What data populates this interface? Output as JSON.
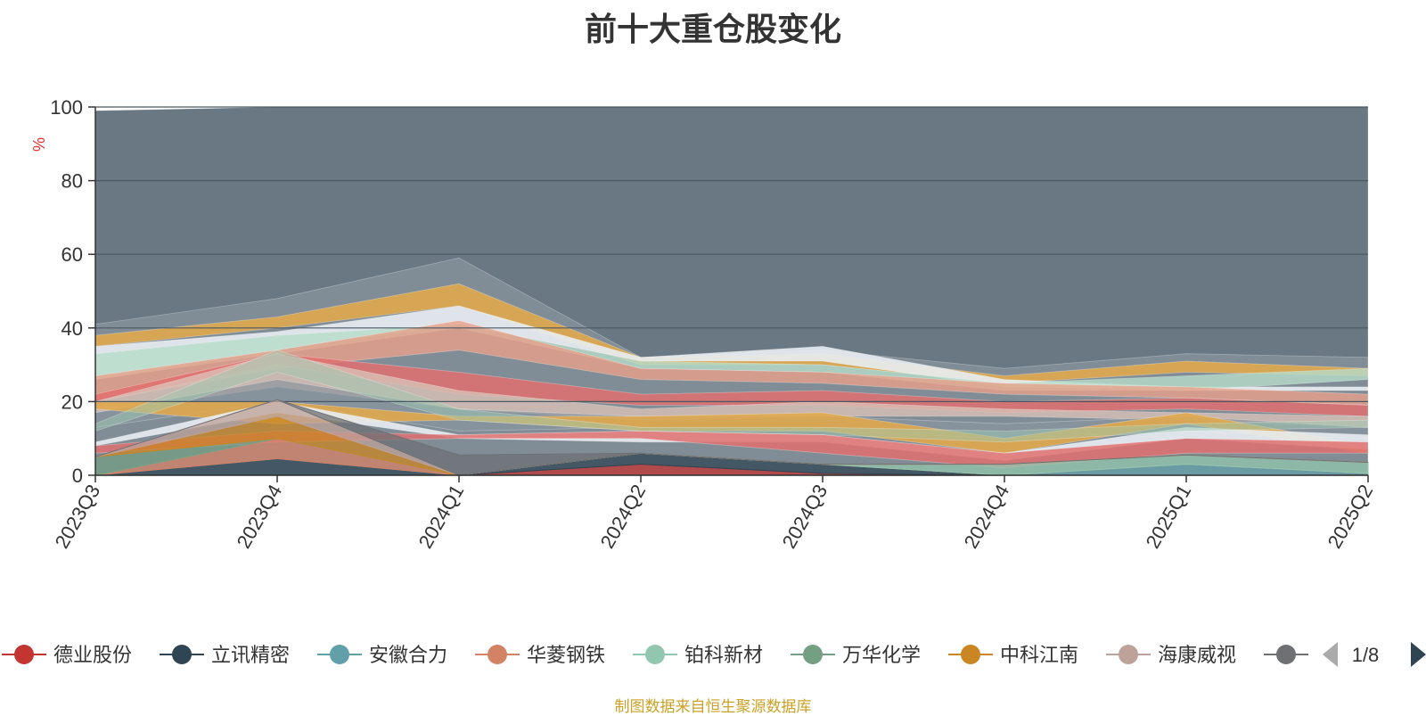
{
  "chart_data": {
    "type": "area",
    "title": "前十大重仓股变化",
    "ylabel": "%",
    "ylim": [
      0,
      100
    ],
    "yticks": [
      0,
      20,
      40,
      60,
      80,
      100
    ],
    "grid": true,
    "stacked": true,
    "categories": [
      "2023Q3",
      "2023Q4",
      "2024Q1",
      "2024Q2",
      "2024Q3",
      "2024Q4",
      "2025Q1",
      "2025Q2"
    ],
    "series": [
      {
        "name": "德业股份",
        "color": "#c23531",
        "values": [
          0,
          0,
          0,
          3,
          0.5,
          0,
          0,
          0
        ]
      },
      {
        "name": "立讯精密",
        "color": "#2f4554",
        "values": [
          0,
          4.5,
          0,
          3,
          2.5,
          0,
          0,
          0
        ]
      },
      {
        "name": "安徽合力",
        "color": "#61a0a8",
        "values": [
          0,
          0,
          0,
          0,
          0,
          0,
          3,
          0.5
        ]
      },
      {
        "name": "华菱钢铁",
        "color": "#d48265",
        "values": [
          0,
          5.5,
          0,
          0,
          0,
          0,
          0,
          0
        ]
      },
      {
        "name": "铂科新材",
        "color": "#91c7ae",
        "values": [
          0,
          0,
          0,
          0,
          0,
          3,
          2.5,
          3
        ]
      },
      {
        "name": "万华化学",
        "color": "#749f83",
        "values": [
          5,
          0,
          0,
          0,
          0,
          0,
          0,
          0
        ]
      },
      {
        "name": "中科江南",
        "color": "#ca8622",
        "values": [
          0,
          6,
          0,
          0,
          0,
          0,
          0,
          0
        ]
      },
      {
        "name": "海康威视",
        "color": "#bda29a",
        "values": [
          0,
          4.5,
          0,
          0,
          0,
          0,
          0,
          0
        ]
      },
      {
        "name": "",
        "color": "#6e7074",
        "values": [
          0,
          0,
          5.5,
          0,
          0,
          0,
          0,
          0
        ]
      }
    ],
    "legend": {
      "position": "bottom",
      "page": "1/8"
    }
  },
  "source_note": "制图数据来自恒生聚源数据库"
}
